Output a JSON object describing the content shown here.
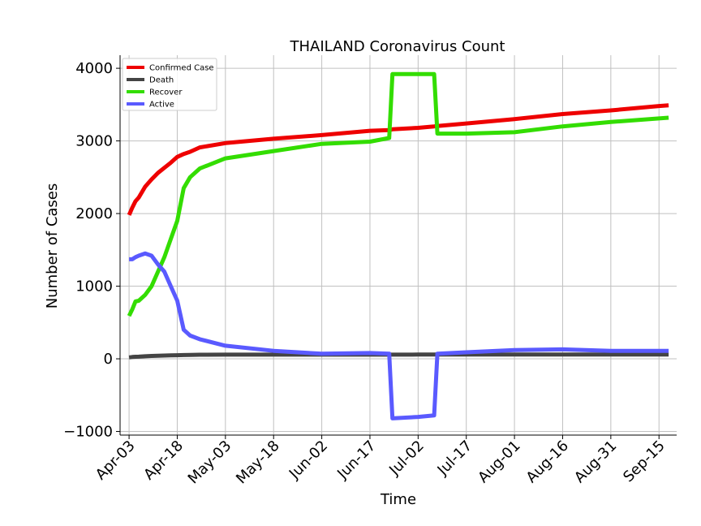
{
  "chart_data": {
    "type": "line",
    "title": "THAILAND Coronavirus Count",
    "xlabel": "Time",
    "ylabel": "Number of Cases",
    "ylim": [
      -1050,
      4180
    ],
    "grid": true,
    "legend_position": "top-left",
    "x_ticks": [
      "Apr-03",
      "Apr-18",
      "May-03",
      "May-18",
      "Jun-02",
      "Jun-17",
      "Jul-02",
      "Jul-17",
      "Aug-01",
      "Aug-16",
      "Aug-31",
      "Sep-15"
    ],
    "y_ticks": [
      "−1000",
      "0",
      "1000",
      "2000",
      "3000",
      "4000"
    ],
    "x": [
      "2020-04-03",
      "2020-04-04",
      "2020-04-05",
      "2020-04-06",
      "2020-04-08",
      "2020-04-10",
      "2020-04-12",
      "2020-04-14",
      "2020-04-16",
      "2020-04-18",
      "2020-04-20",
      "2020-04-22",
      "2020-04-25",
      "2020-05-03",
      "2020-05-18",
      "2020-06-02",
      "2020-06-17",
      "2020-06-23",
      "2020-06-24",
      "2020-07-02",
      "2020-07-07",
      "2020-07-08",
      "2020-07-17",
      "2020-08-01",
      "2020-08-16",
      "2020-08-31",
      "2020-09-15",
      "2020-09-18"
    ],
    "series": [
      {
        "name": "Confirmed Case",
        "color": "#ee0000",
        "values": [
          1980,
          2080,
          2170,
          2220,
          2370,
          2470,
          2560,
          2630,
          2700,
          2780,
          2820,
          2850,
          2910,
          2970,
          3030,
          3080,
          3140,
          3150,
          3160,
          3180,
          3200,
          3205,
          3240,
          3300,
          3370,
          3420,
          3480,
          3490
        ]
      },
      {
        "name": "Death",
        "color": "#444444",
        "values": [
          20,
          25,
          28,
          30,
          35,
          40,
          43,
          45,
          48,
          50,
          52,
          54,
          56,
          58,
          58,
          58,
          58,
          58,
          58,
          59,
          59,
          59,
          59,
          59,
          59,
          59,
          59,
          59
        ]
      },
      {
        "name": "Recover",
        "color": "#33dd00",
        "values": [
          590,
          680,
          790,
          800,
          880,
          1000,
          1200,
          1400,
          1650,
          1900,
          2350,
          2500,
          2620,
          2760,
          2860,
          2960,
          2990,
          3040,
          3920,
          3920,
          3920,
          3100,
          3100,
          3120,
          3200,
          3260,
          3310,
          3320
        ]
      },
      {
        "name": "Active",
        "color": "#5a5aff",
        "values": [
          1370,
          1370,
          1400,
          1420,
          1450,
          1420,
          1300,
          1200,
          1000,
          800,
          400,
          320,
          270,
          180,
          110,
          70,
          80,
          70,
          -820,
          -800,
          -780,
          70,
          90,
          120,
          130,
          110,
          110,
          110
        ]
      }
    ]
  }
}
